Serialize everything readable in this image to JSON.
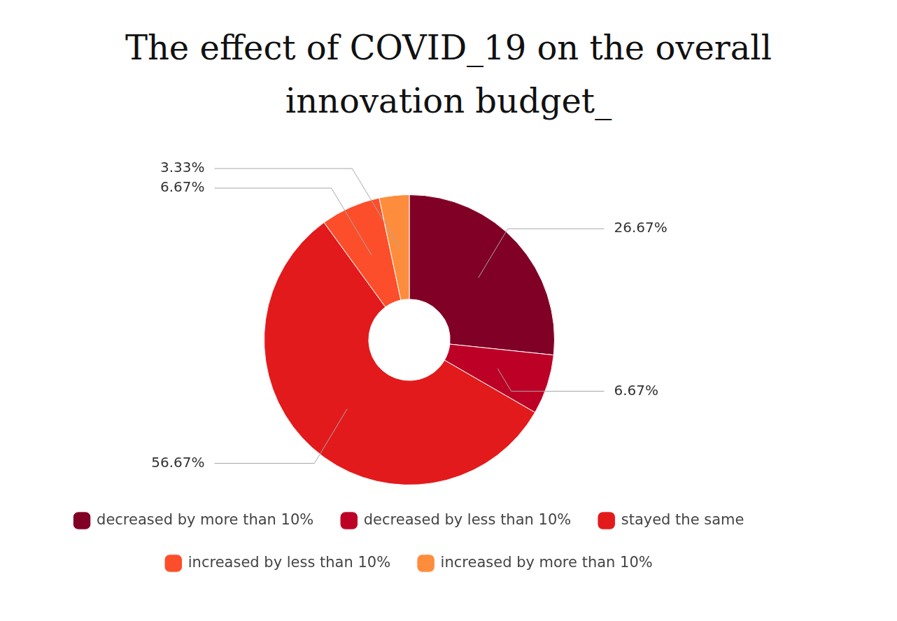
{
  "chart_data": {
    "type": "doughnut",
    "title": "The effect of COVID_19 on the overall innovation budget_",
    "categories": [
      "decreased by more than 10%",
      "decreased by less than 10%",
      "stayed the same",
      "increased by less than 10%",
      "increased by more than 10%"
    ],
    "values": [
      26.67,
      6.67,
      56.67,
      6.67,
      3.33
    ],
    "value_labels": [
      "26.67%",
      "6.67%",
      "56.67%",
      "6.67%",
      "3.33%"
    ],
    "colors": [
      "#800026",
      "#bd0026",
      "#e31a1c",
      "#fc4e2a",
      "#fd8d3c"
    ],
    "data_labels": true,
    "legend": "bottom"
  }
}
